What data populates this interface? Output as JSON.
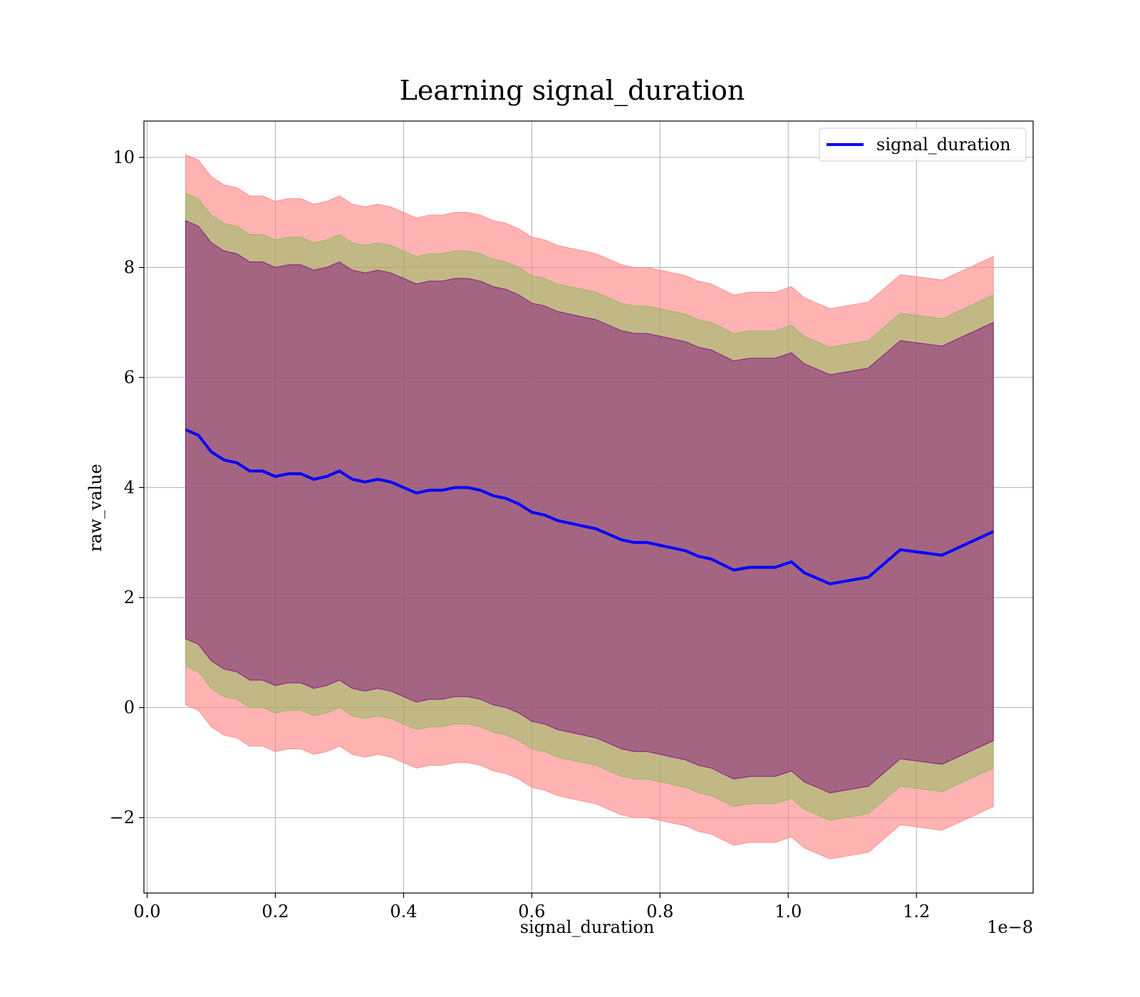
{
  "chart_data": {
    "type": "area",
    "title": "Learning signal_duration",
    "xlabel": "signal_duration",
    "ylabel": "raw_value",
    "x_offset_label": "1e−8",
    "xlim": [
      -0.005,
      1.382
    ],
    "ylim": [
      -3.37,
      10.66
    ],
    "x_ticks": [
      0.0,
      0.2,
      0.4,
      0.6,
      0.8,
      1.0,
      1.2
    ],
    "x_tick_labels": [
      "0.0",
      "0.2",
      "0.4",
      "0.6",
      "0.8",
      "1.0",
      "1.2"
    ],
    "y_ticks": [
      -2,
      0,
      2,
      4,
      6,
      8,
      10
    ],
    "y_tick_labels": [
      "−2",
      "0",
      "2",
      "4",
      "6",
      "8",
      "10"
    ],
    "grid": true,
    "legend_position": "top-right",
    "colors": {
      "mean_line": "#0000ff",
      "outer_band": "#ff8080",
      "middle_band": "#8fbc5f",
      "inner_band": "#800080"
    },
    "x": [
      0.06,
      0.07,
      0.08,
      0.09,
      0.1,
      0.12,
      0.14,
      0.16,
      0.18,
      0.2,
      0.22,
      0.24,
      0.26,
      0.28,
      0.3,
      0.32,
      0.34,
      0.36,
      0.38,
      0.4,
      0.42,
      0.44,
      0.46,
      0.48,
      0.5,
      0.52,
      0.54,
      0.56,
      0.58,
      0.6,
      0.62,
      0.64,
      0.66,
      0.68,
      0.7,
      0.72,
      0.74,
      0.76,
      0.78,
      0.8,
      0.82,
      0.84,
      0.86,
      0.88,
      0.915,
      0.94,
      0.98,
      1.005,
      1.025,
      1.065,
      1.125,
      1.175,
      1.24,
      1.32
    ],
    "series": [
      {
        "name": "signal_duration",
        "values": [
          5.05,
          5.0,
          4.95,
          4.8,
          4.65,
          4.5,
          4.45,
          4.3,
          4.3,
          4.2,
          4.25,
          4.25,
          4.15,
          4.2,
          4.3,
          4.15,
          4.1,
          4.15,
          4.1,
          4.0,
          3.9,
          3.95,
          3.95,
          4.0,
          4.0,
          3.95,
          3.85,
          3.8,
          3.7,
          3.55,
          3.5,
          3.4,
          3.35,
          3.3,
          3.25,
          3.15,
          3.05,
          3.0,
          3.0,
          2.95,
          2.9,
          2.85,
          2.75,
          2.7,
          2.5,
          2.55,
          2.55,
          2.65,
          2.45,
          2.25,
          2.37,
          2.87,
          2.77,
          3.2
        ]
      }
    ],
    "bands": [
      {
        "color": "outer_band",
        "half_width": 5.0
      },
      {
        "color": "middle_band",
        "half_width": 4.3
      },
      {
        "color": "inner_band",
        "half_width": 3.8
      }
    ]
  }
}
